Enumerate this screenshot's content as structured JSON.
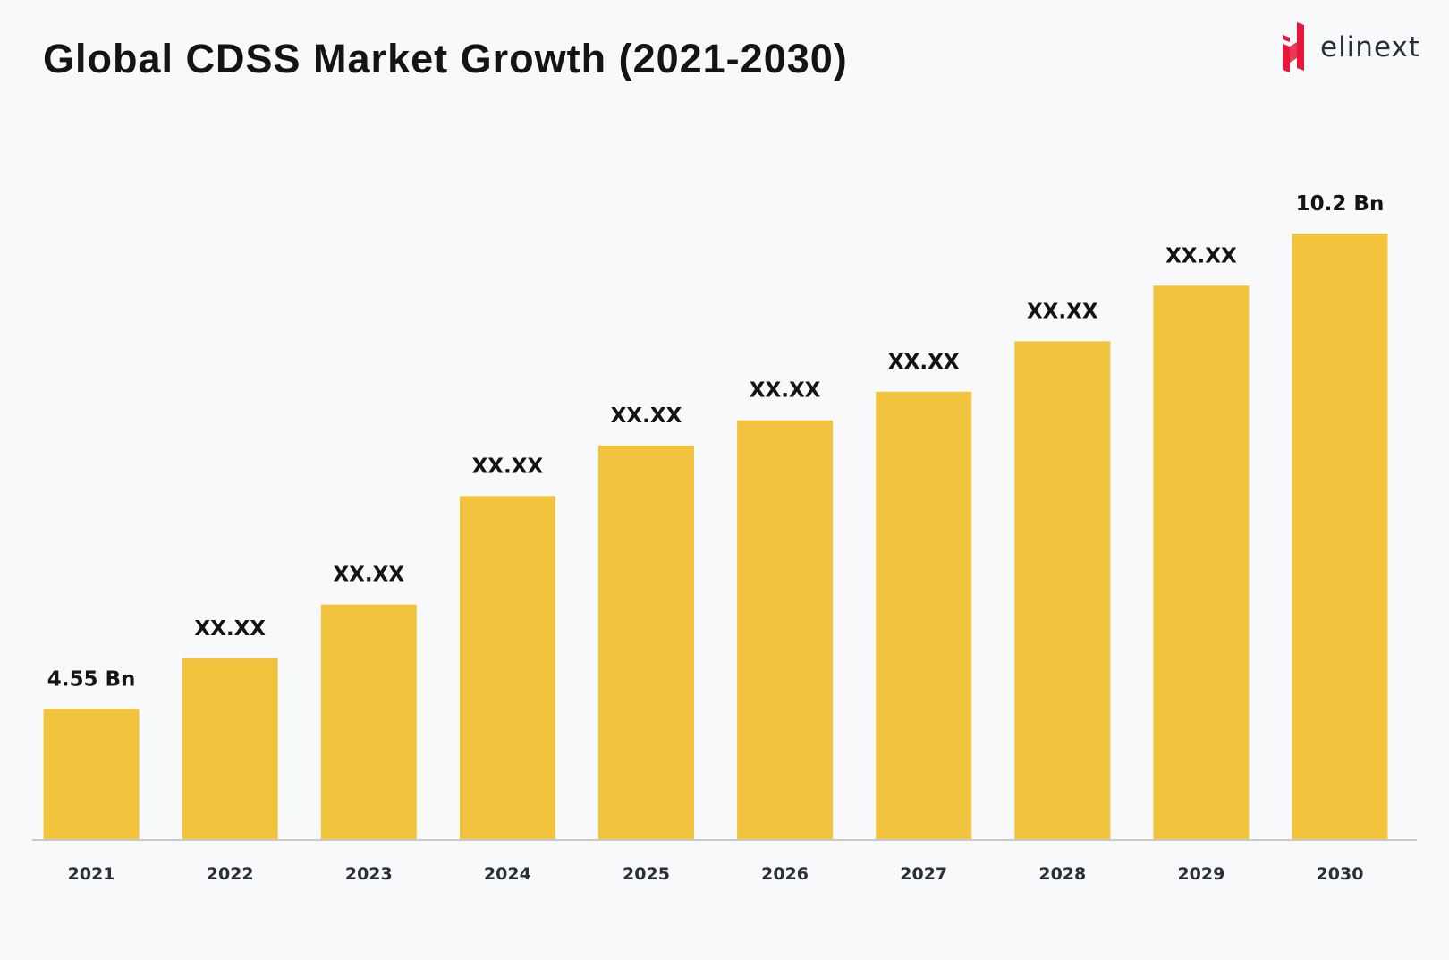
{
  "title": "Global CDSS Market Growth (2021-2030)",
  "logo": {
    "text": "elinext",
    "mark_color": "#e8173a"
  },
  "chart_data": {
    "type": "bar",
    "title": "Global CDSS Market Growth (2021-2030)",
    "categories": [
      "2021",
      "2022",
      "2023",
      "2024",
      "2025",
      "2026",
      "2027",
      "2028",
      "2029",
      "2030"
    ],
    "values": [
      4.55,
      5.15,
      5.79,
      7.08,
      7.68,
      7.98,
      8.32,
      8.92,
      9.58,
      10.2
    ],
    "data_labels": [
      "4.55 Bn",
      "XX.XX",
      "XX.XX",
      "XX.XX",
      "XX.XX",
      "XX.XX",
      "XX.XX",
      "XX.XX",
      "XX.XX",
      "10.2 Bn"
    ],
    "xlabel": "",
    "ylabel": "",
    "ylim": [
      3.0,
      10.2
    ],
    "grid": false,
    "bar_color": "#f2c43d",
    "axis_color": "#c8cacf"
  }
}
